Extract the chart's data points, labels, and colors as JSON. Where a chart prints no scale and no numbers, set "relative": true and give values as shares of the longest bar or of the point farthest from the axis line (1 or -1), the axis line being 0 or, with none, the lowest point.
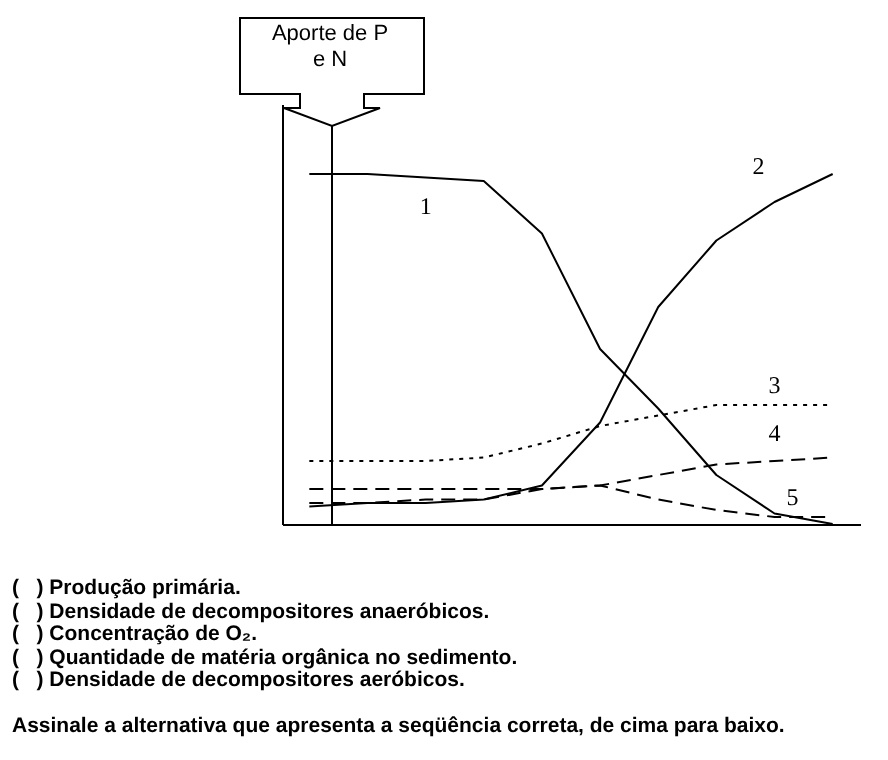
{
  "chart_data": {
    "type": "line",
    "relative": true,
    "legend": false,
    "grid": false,
    "tick_labels": false,
    "categories": [
      null,
      null,
      null,
      null,
      null,
      null,
      null,
      null,
      null,
      null
    ],
    "series": [
      {
        "name": "1",
        "color": "#000000",
        "line_style": "solid",
        "values": [
          1.0,
          1.0,
          0.99,
          0.98,
          0.83,
          0.5,
          0.33,
          0.14,
          0.03,
          0
        ]
      },
      {
        "name": "2",
        "color": "#000000",
        "line_style": "solid",
        "values": [
          0.05,
          0.06,
          0.06,
          0.07,
          0.11,
          0.29,
          0.62,
          0.81,
          0.92,
          1.0
        ]
      },
      {
        "name": "3",
        "color": "#000000",
        "line_style": "dotted",
        "values": [
          0.18,
          0.18,
          0.18,
          0.19,
          0.23,
          0.28,
          0.31,
          0.34,
          0.34,
          0.34
        ]
      },
      {
        "name": "4",
        "color": "#000000",
        "line_style": "dashed",
        "values": [
          0.1,
          0.1,
          0.1,
          0.1,
          0.1,
          0.11,
          0.14,
          0.17,
          0.18,
          0.19
        ]
      },
      {
        "name": "5",
        "color": "#000000",
        "line_style": "dashed",
        "values": [
          0.06,
          0.06,
          0.07,
          0.07,
          0.1,
          0.11,
          0.07,
          0.04,
          0.02,
          0.02
        ]
      }
    ],
    "annotations": [
      "Aporte de P e N",
      "(   ) Produção primária.",
      "(   ) Densidade de decompositores anaeróbicos.",
      "(   ) Concentração de O₂.",
      "(   ) Quantidade de matéria orgânica no sedimento.",
      "(   ) Densidade de decompositores aeróbicos.",
      "Assinale a alternativa que apresenta a seqüência correta, de cima para baixo."
    ]
  }
}
